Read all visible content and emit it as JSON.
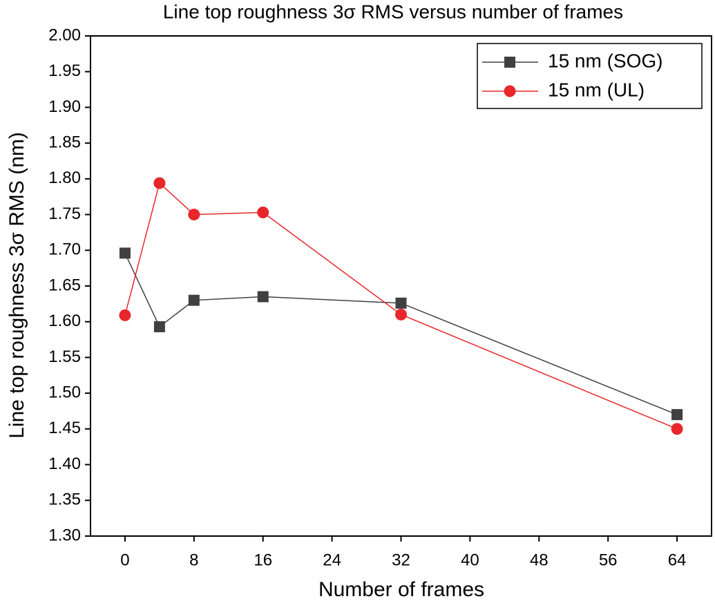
{
  "chart_data": {
    "type": "line",
    "title": "Line top roughness 3σ RMS versus number of frames",
    "x_label": "Number of frames",
    "y_label": "Line top roughness 3σ RMS (nm)",
    "x": [
      0,
      4,
      8,
      16,
      32,
      64
    ],
    "series": [
      {
        "name": "15 nm (SOG)",
        "color": "#404040",
        "marker": "square",
        "values": [
          1.696,
          1.593,
          1.63,
          1.635,
          1.626,
          1.47
        ]
      },
      {
        "name": "15 nm (UL)",
        "color": "#e8272a",
        "marker": "circle",
        "values": [
          1.609,
          1.794,
          1.75,
          1.753,
          1.61,
          1.45
        ]
      }
    ],
    "xlim": [
      -4,
      68
    ],
    "xticks": [
      0,
      8,
      16,
      24,
      32,
      40,
      48,
      56,
      64
    ],
    "ylim": [
      1.3,
      2.0
    ],
    "yticks": [
      {
        "value": 1.3,
        "label": "1.30"
      },
      {
        "value": 1.35,
        "label": "1.35"
      },
      {
        "value": 1.4,
        "label": "1.40"
      },
      {
        "value": 1.45,
        "label": "1.45"
      },
      {
        "value": 1.5,
        "label": "1.50"
      },
      {
        "value": 1.55,
        "label": "1.55"
      },
      {
        "value": 1.6,
        "label": "1.60"
      },
      {
        "value": 1.65,
        "label": "1.65"
      },
      {
        "value": 1.7,
        "label": "1.70"
      },
      {
        "value": 1.75,
        "label": "1.75"
      },
      {
        "value": 1.8,
        "label": "1.80"
      },
      {
        "value": 1.85,
        "label": "1.85"
      },
      {
        "value": 1.9,
        "label": "1.90"
      },
      {
        "value": 1.95,
        "label": "1.95"
      },
      {
        "value": 2.0,
        "label": "2.00"
      }
    ],
    "legend": "upper right",
    "grid": false
  }
}
